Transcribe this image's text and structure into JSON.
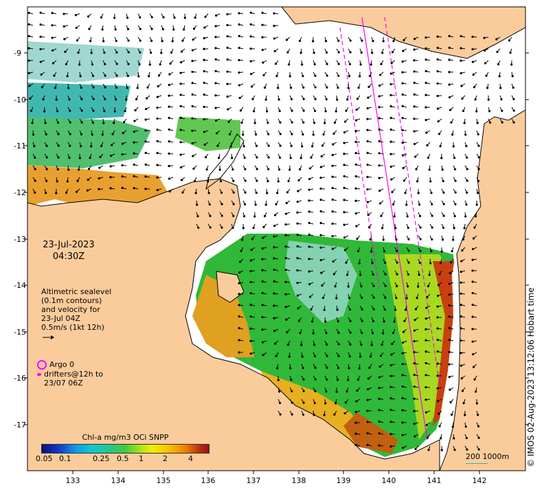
{
  "map": {
    "date": "23-Jul-2023",
    "time": "04:30Z",
    "longitude_ticks": [
      "133",
      "134",
      "135",
      "136",
      "137",
      "138",
      "139",
      "140",
      "141",
      "142"
    ],
    "latitude_ticks": [
      "-9",
      "-10",
      "-11",
      "-12",
      "-13",
      "-14",
      "-15",
      "-16",
      "-17"
    ],
    "land_color": "#fbcc9b",
    "nodata_color": "#ffffff"
  },
  "legend": {
    "altimetry_lines": [
      "Altimetric sealevel",
      "(0.1m contours)",
      "and velocity for",
      "23-Jul 04Z",
      "0.5m/s (1kt 12h)"
    ],
    "argo_label": "Argo 0",
    "drifter_lines": [
      "drifters@12h to",
      "23/07 06Z"
    ],
    "argo_color": "#ff00ff"
  },
  "colorbar": {
    "title": "Chl-a mg/m3 OCi SNPP",
    "labels": [
      "0.05",
      "0.1",
      "0.25",
      "0.5",
      "1",
      "2",
      "4"
    ]
  },
  "scale": {
    "label": "200  1000m"
  },
  "credit": "© IMOS 02-Aug-2023 13:12:06 Hobart time"
}
